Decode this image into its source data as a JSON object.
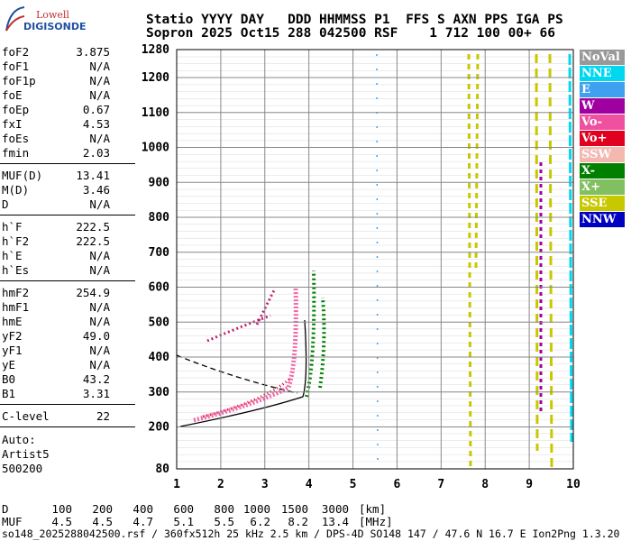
{
  "logo": {
    "line1": "Lowell",
    "line2": "DIGISONDE"
  },
  "header": {
    "row1": "Statio YYYY DAY   DDD HHMMSS P1  FFS S AXN PPS IGA PS",
    "row2": "Sopron 2025 Oct15 288 042500 RSF    1 712 100 00+ 66"
  },
  "params": [
    [
      [
        "foF2",
        "3.875"
      ],
      [
        "foF1",
        "N/A"
      ],
      [
        "foF1p",
        "N/A"
      ],
      [
        "foE",
        "N/A"
      ],
      [
        "foEp",
        "0.67"
      ],
      [
        "fxI",
        "4.53"
      ],
      [
        "foEs",
        "N/A"
      ],
      [
        "fmin",
        "2.03"
      ]
    ],
    [
      [
        "MUF(D)",
        "13.41"
      ],
      [
        "M(D)",
        "3.46"
      ],
      [
        "D",
        "N/A"
      ]
    ],
    [
      [
        "h`F",
        "222.5"
      ],
      [
        "h`F2",
        "222.5"
      ],
      [
        "h`E",
        "N/A"
      ],
      [
        "h`Es",
        "N/A"
      ]
    ],
    [
      [
        "hmF2",
        "254.9"
      ],
      [
        "hmF1",
        "N/A"
      ],
      [
        "hmE",
        "N/A"
      ],
      [
        "yF2",
        "49.0"
      ],
      [
        "yF1",
        "N/A"
      ],
      [
        "yE",
        "N/A"
      ],
      [
        "B0",
        "43.2"
      ],
      [
        "B1",
        "3.31"
      ]
    ],
    [
      [
        "C-level",
        "22"
      ]
    ]
  ],
  "autoscale": [
    "Auto:",
    "Artist5",
    "500200"
  ],
  "plot": {
    "xlim": [
      1,
      10
    ],
    "xticks": [
      1,
      2,
      3,
      4,
      5,
      6,
      7,
      8,
      9,
      10
    ],
    "ylim": [
      80,
      1280
    ],
    "yticks": [
      80,
      200,
      300,
      400,
      500,
      600,
      700,
      800,
      900,
      1000,
      1100,
      1200,
      1280
    ]
  },
  "legend": [
    {
      "label": "NoVal",
      "color": "#999999"
    },
    {
      "label": "NNE",
      "color": "#00d8f0"
    },
    {
      "label": "E",
      "color": "#40a0f0"
    },
    {
      "label": "W",
      "color": "#a000a0"
    },
    {
      "label": "Vo-",
      "color": "#f050a0"
    },
    {
      "label": "Vo+",
      "color": "#e00020"
    },
    {
      "label": "SSW",
      "color": "#f4b8b0"
    },
    {
      "label": "X-",
      "color": "#008000"
    },
    {
      "label": "X+",
      "color": "#80c060"
    },
    {
      "label": "SSE",
      "color": "#c8c800"
    },
    {
      "label": "NNW",
      "color": "#0000c0"
    }
  ],
  "footer": {
    "rows": [
      [
        "D",
        "100",
        "200",
        "400",
        "600",
        "800",
        "1000",
        "1500",
        "3000",
        "[km]"
      ],
      [
        "MUF",
        "4.5",
        "4.5",
        "4.7",
        "5.1",
        "5.5",
        "6.2",
        "8.2",
        "13.4",
        "[MHz]"
      ]
    ],
    "info": "so148_2025288042500.rsf / 360fx512h 25 kHz 2.5 km / DPS-4D SO148 147 / 47.6 N 16.7 E Ion2Png 1.3.20"
  }
}
